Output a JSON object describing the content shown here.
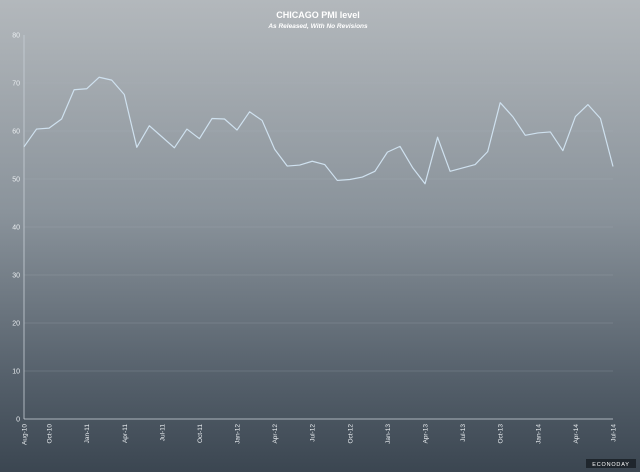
{
  "chart_data": {
    "type": "line",
    "title": "CHICAGO PMI level",
    "subtitle": "As Released, With No Revisions",
    "xlabel": "",
    "ylabel": "",
    "ylim": [
      0,
      80
    ],
    "yticks": [
      0,
      10,
      20,
      30,
      40,
      50,
      60,
      70,
      80
    ],
    "grid": true,
    "legend": "none",
    "x": [
      "Aug-10",
      "Sep-10",
      "Oct-10",
      "Nov-10",
      "Dec-10",
      "Jan-11",
      "Feb-11",
      "Mar-11",
      "Apr-11",
      "May-11",
      "Jun-11",
      "Jul-11",
      "Aug-11",
      "Sep-11",
      "Oct-11",
      "Nov-11",
      "Dec-11",
      "Jan-12",
      "Feb-12",
      "Mar-12",
      "Apr-12",
      "May-12",
      "Jun-12",
      "Jul-12",
      "Aug-12",
      "Sep-12",
      "Oct-12",
      "Nov-12",
      "Dec-12",
      "Jan-13",
      "Feb-13",
      "Mar-13",
      "Apr-13",
      "May-13",
      "Jun-13",
      "Jul-13",
      "Aug-13",
      "Sep-13",
      "Oct-13",
      "Nov-13",
      "Dec-13",
      "Jan-14",
      "Feb-14",
      "Mar-14",
      "Apr-14",
      "May-14",
      "Jun-14",
      "Jul-14"
    ],
    "tick_labels": [
      "Aug-10",
      "Oct-10",
      "Jan-11",
      "Apr-11",
      "Jul-11",
      "Oct-11",
      "Jan-12",
      "Apr-12",
      "Jul-12",
      "Oct-12",
      "Jan-13",
      "Apr-13",
      "Jul-13",
      "Oct-13",
      "Jan-14",
      "Apr-14",
      "Jul-14"
    ],
    "series": [
      {
        "values": [
          56.7,
          60.4,
          60.6,
          62.5,
          68.6,
          68.8,
          71.2,
          70.6,
          67.6,
          56.6,
          61.1,
          58.8,
          56.5,
          60.4,
          58.4,
          62.6,
          62.5,
          60.2,
          64.0,
          62.2,
          56.2,
          52.7,
          52.9,
          53.7,
          53.0,
          49.7,
          49.9,
          50.4,
          51.6,
          55.6,
          56.8,
          52.4,
          49.0,
          58.7,
          51.6,
          52.3,
          53.0,
          55.7,
          65.9,
          63.0,
          59.1,
          59.6,
          59.8,
          55.9,
          63.0,
          65.5,
          62.6,
          52.6
        ]
      }
    ],
    "line_color": "#cfe1ef",
    "brand": "ECONODAY"
  }
}
